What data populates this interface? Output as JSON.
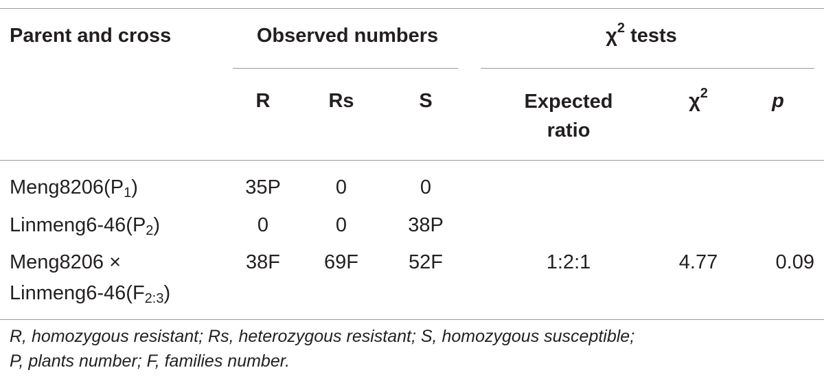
{
  "header": {
    "parent_and_cross": "Parent and cross",
    "observed_numbers": "Observed numbers",
    "chi_tests_symbol": "χ",
    "chi_tests_sup": "2",
    "chi_tests_text": " tests",
    "col_r": "R",
    "col_rs": "Rs",
    "col_s": "S",
    "expected_line1": "Expected",
    "expected_line2": "ratio",
    "chi_col_symbol": "χ",
    "chi_col_sup": "2",
    "p_col": "p"
  },
  "rows": [
    {
      "name_main": "Meng8206(P",
      "name_sub": "1",
      "name_close": ")",
      "r": "35P",
      "rs": "0",
      "s": "0"
    },
    {
      "name_main": "Linmeng6-46(P",
      "name_sub": "2",
      "name_close": ")",
      "r": "0",
      "rs": "0",
      "s": "38P"
    },
    {
      "name_line1": "Meng8206 ×",
      "name_main": "Linmeng6-46(F",
      "name_sub": "2:3",
      "name_close": ")",
      "r": "38F",
      "rs": "69F",
      "s": "52F",
      "expected_ratio": "1:2:1",
      "chi2": "4.77",
      "p": "0.09"
    }
  ],
  "footnote": {
    "line1": "R, homozygous resistant; Rs, heterozygous resistant; S, homozygous susceptible;",
    "line2": "P, plants number; F, families number."
  }
}
